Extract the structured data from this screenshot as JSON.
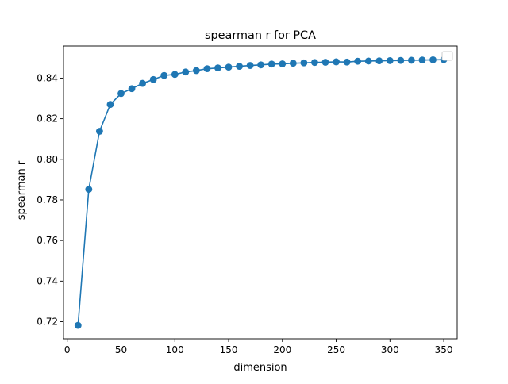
{
  "chart_data": {
    "type": "line",
    "title": "spearman r for PCA",
    "xlabel": "dimension",
    "ylabel": "spearman r",
    "xlim": [
      -3.5,
      362.5
    ],
    "ylim": [
      0.7116,
      0.8558
    ],
    "xticks": [
      0,
      50,
      100,
      150,
      200,
      250,
      300,
      350
    ],
    "yticks": [
      0.72,
      0.74,
      0.76,
      0.78,
      0.8,
      0.82,
      0.84
    ],
    "ytick_labels": [
      "0.72",
      "0.74",
      "0.76",
      "0.78",
      "0.80",
      "0.82",
      "0.84"
    ],
    "grid": false,
    "legend": "upper right (empty)",
    "series": [
      {
        "color": "#1f77b4",
        "marker": "circle",
        "x": [
          10,
          20,
          30,
          40,
          50,
          60,
          70,
          80,
          90,
          100,
          110,
          120,
          130,
          140,
          150,
          160,
          170,
          180,
          190,
          200,
          210,
          220,
          230,
          240,
          250,
          260,
          270,
          280,
          290,
          300,
          310,
          320,
          330,
          340,
          350
        ],
        "y": [
          0.7182,
          0.7852,
          0.8138,
          0.827,
          0.8324,
          0.8348,
          0.8374,
          0.8393,
          0.8413,
          0.8418,
          0.843,
          0.8437,
          0.8446,
          0.845,
          0.8454,
          0.8458,
          0.8462,
          0.8465,
          0.8469,
          0.847,
          0.8473,
          0.8475,
          0.8477,
          0.8478,
          0.848,
          0.8479,
          0.8483,
          0.8484,
          0.8485,
          0.8486,
          0.8487,
          0.8488,
          0.8489,
          0.849,
          0.8491
        ]
      }
    ]
  }
}
